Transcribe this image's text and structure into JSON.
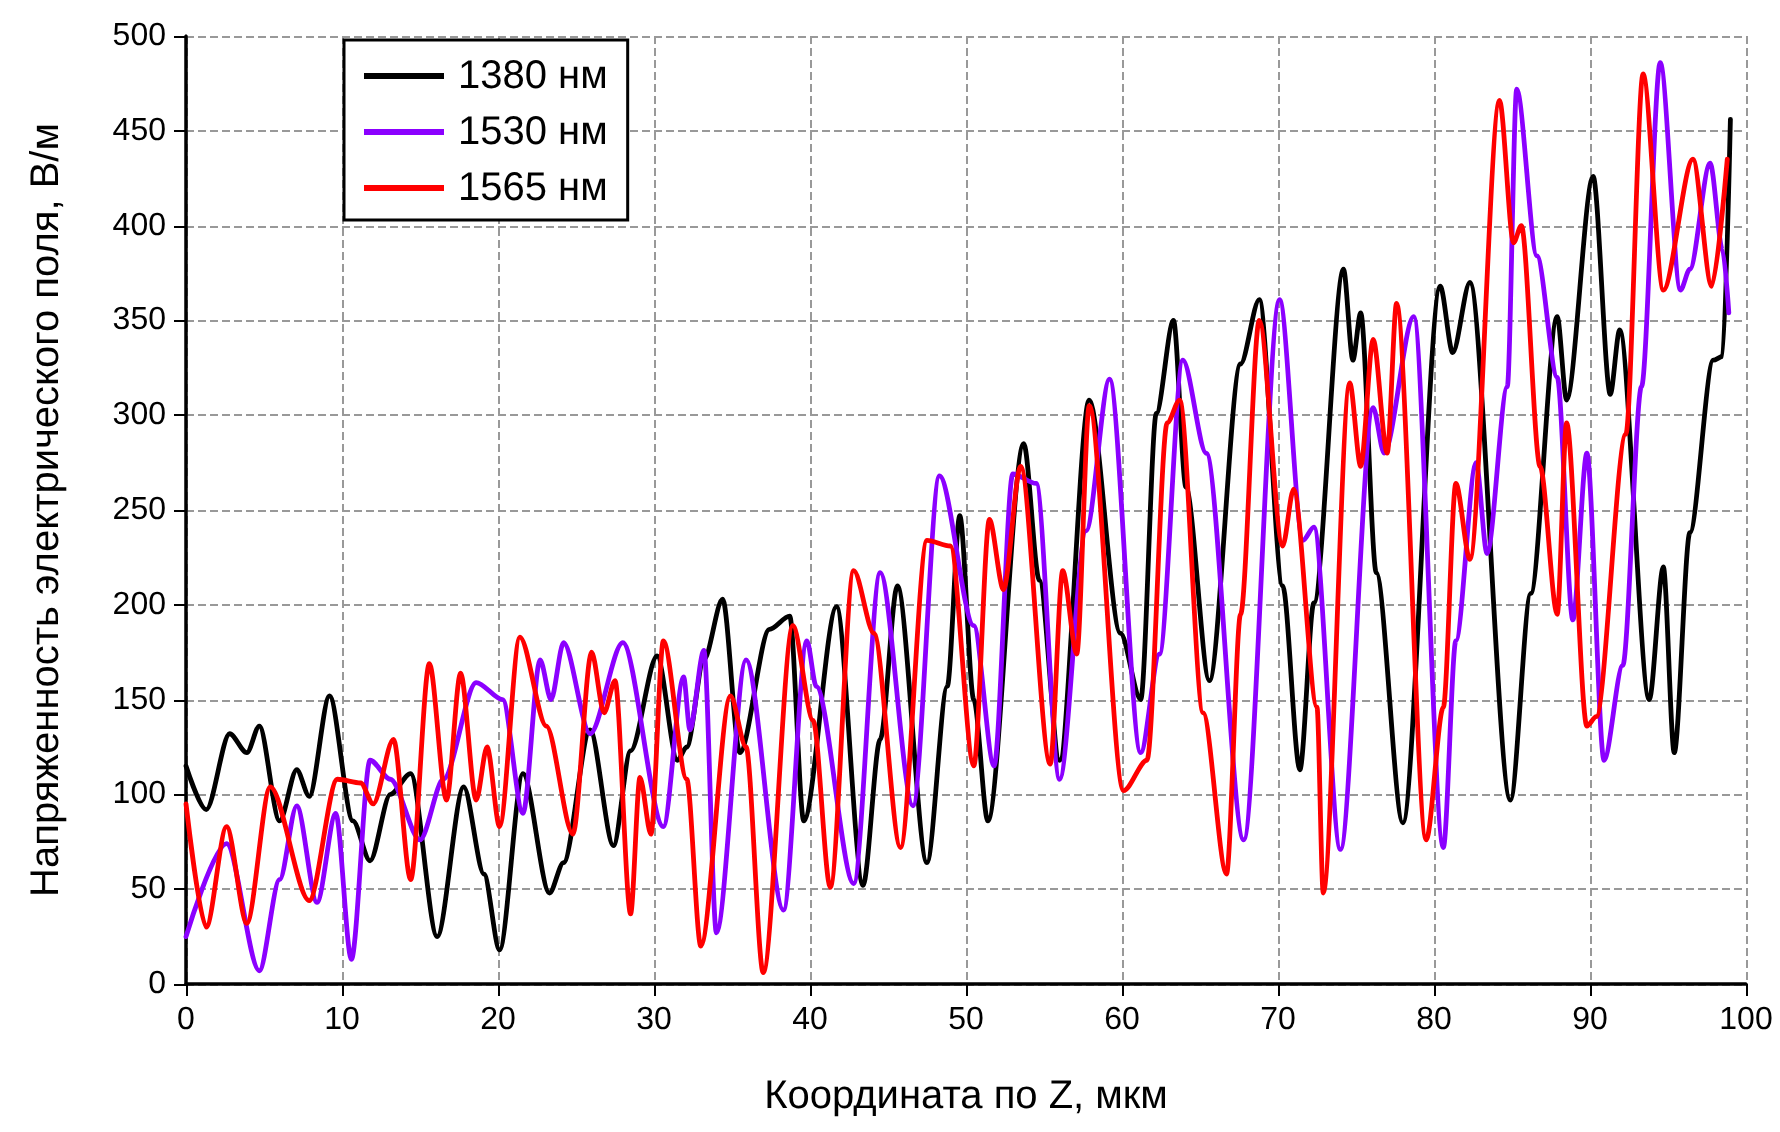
{
  "chart_data": {
    "type": "line",
    "xlabel": "Координата по Z, мкм",
    "ylabel": "Напряженность электрического поля, В/м",
    "xlim": [
      0,
      100
    ],
    "xticks": [
      0,
      10,
      20,
      30,
      40,
      50,
      60,
      70,
      80,
      90,
      100
    ],
    "ylim": [
      0,
      500
    ],
    "yticks": [
      0,
      50,
      100,
      150,
      200,
      250,
      300,
      350,
      400,
      450,
      500
    ],
    "grid": true,
    "legend": "top left",
    "marker": "none",
    "line_style": "solid",
    "series": [
      {
        "name": "1380 нм",
        "color": "#000000",
        "x": [
          0,
          1.3,
          2.8,
          3.9,
          4.7,
          6,
          7.1,
          7.9,
          9.2,
          10.7,
          11.8,
          13.1,
          14.4,
          16.1,
          17.8,
          19.1,
          20.1,
          21.6,
          23.3,
          24.2,
          25.9,
          27.4,
          28.5,
          30.2,
          31.5,
          32.1,
          33.2,
          34.4,
          35.5,
          37.4,
          38.7,
          39.6,
          41.7,
          43.4,
          44.5,
          45.6,
          47.5,
          48.8,
          49.6,
          50.5,
          51.4,
          53.7,
          54.7,
          56,
          57.9,
          59.9,
          61.2,
          62.2,
          63.3,
          64.1,
          65.6,
          67.6,
          68.8,
          70.3,
          71.4,
          72.3,
          74.2,
          74.8,
          75.3,
          76.3,
          78,
          80.4,
          81.2,
          82.3,
          84.9,
          86.2,
          87.9,
          88.5,
          90.2,
          91.3,
          91.9,
          93.8,
          94.7,
          95.4,
          96.4,
          97.9,
          98.5,
          99
        ],
        "values": [
          115,
          92,
          132,
          122,
          136,
          86,
          113,
          99,
          152,
          86,
          65,
          100,
          111,
          25,
          104,
          58,
          18,
          111,
          48,
          64,
          134,
          73,
          123,
          173,
          118,
          125,
          171,
          203,
          122,
          187,
          194,
          86,
          199,
          52,
          129,
          210,
          64,
          157,
          247,
          150,
          86,
          285,
          213,
          118,
          308,
          185,
          150,
          301,
          350,
          262,
          160,
          327,
          361,
          210,
          113,
          201,
          377,
          329,
          354,
          217,
          85,
          368,
          333,
          370,
          97,
          206,
          352,
          308,
          426,
          311,
          345,
          150,
          220,
          122,
          238,
          329,
          331,
          456
        ]
      },
      {
        "name": "1530 нм",
        "color": "#8b00ff",
        "x": [
          0,
          2.6,
          4.7,
          6,
          7.1,
          8.4,
          9.6,
          10.6,
          11.8,
          13.1,
          15,
          16.5,
          18.6,
          20.3,
          21.6,
          22.7,
          23.4,
          24.2,
          25.9,
          28,
          30.6,
          31.9,
          32.3,
          33.2,
          34,
          35.9,
          38.3,
          39.8,
          40.4,
          42.8,
          44.5,
          46.6,
          48.3,
          50.5,
          51.8,
          53,
          54.5,
          56,
          57.7,
          59.2,
          61.2,
          62.4,
          63.9,
          65.4,
          67.8,
          70.1,
          71.6,
          72.3,
          74,
          76.1,
          76.8,
          78.7,
          80.6,
          81.4,
          82.7,
          83.4,
          84.7,
          85.3,
          86.6,
          87.9,
          88.9,
          89.8,
          90.9,
          92.1,
          93.3,
          94.5,
          95.8,
          96.4,
          97.7,
          98.5,
          98.9
        ],
        "values": [
          25,
          74,
          7,
          55,
          94,
          43,
          90,
          13,
          118,
          108,
          76,
          108,
          159,
          150,
          90,
          171,
          150,
          180,
          132,
          180,
          83,
          162,
          134,
          176,
          27,
          171,
          39,
          181,
          157,
          53,
          217,
          94,
          268,
          189,
          115,
          269,
          264,
          108,
          239,
          319,
          122,
          174,
          329,
          280,
          76,
          361,
          234,
          241,
          71,
          304,
          280,
          352,
          72,
          181,
          275,
          227,
          315,
          472,
          384,
          320,
          192,
          280,
          118,
          168,
          315,
          486,
          366,
          377,
          433,
          387,
          354
        ]
      },
      {
        "name": "1565 нм",
        "color": "#ff0000",
        "x": [
          0,
          1.3,
          2.6,
          3.9,
          5.4,
          7.9,
          9.7,
          11.2,
          12,
          13.3,
          14.4,
          15.6,
          16.7,
          17.6,
          18.6,
          19.3,
          20.1,
          21.4,
          23.1,
          24.8,
          26,
          26.8,
          27.5,
          28.5,
          29.1,
          29.8,
          30.6,
          32.1,
          33,
          34.9,
          35.9,
          37,
          38.9,
          40.2,
          41.3,
          42.8,
          44.1,
          45.8,
          47.5,
          49,
          50.5,
          51.5,
          52.4,
          53.5,
          55.4,
          56.2,
          57.1,
          57.9,
          60.1,
          61.6,
          62.9,
          63.7,
          65.2,
          66.7,
          67.6,
          68.8,
          70.3,
          71,
          72.5,
          72.9,
          74.6,
          75.3,
          76.1,
          77,
          77.6,
          79.5,
          80.6,
          81.4,
          82.3,
          84.2,
          85.1,
          85.6,
          86.8,
          87.9,
          88.5,
          89.8,
          90.4,
          92.3,
          93.4,
          94.7,
          96.6,
          97.8,
          98.8
        ],
        "values": [
          95,
          30,
          83,
          32,
          104,
          44,
          108,
          106,
          95,
          129,
          55,
          169,
          97,
          164,
          97,
          125,
          83,
          183,
          136,
          79,
          175,
          143,
          160,
          37,
          109,
          79,
          181,
          108,
          20,
          152,
          125,
          6,
          189,
          139,
          51,
          218,
          185,
          72,
          234,
          231,
          115,
          245,
          208,
          273,
          116,
          218,
          174,
          305,
          102,
          118,
          296,
          308,
          143,
          58,
          195,
          350,
          231,
          261,
          146,
          48,
          317,
          273,
          340,
          280,
          359,
          76,
          146,
          264,
          224,
          466,
          391,
          400,
          273,
          195,
          296,
          136,
          141,
          290,
          480,
          366,
          435,
          368,
          435
        ]
      }
    ]
  }
}
